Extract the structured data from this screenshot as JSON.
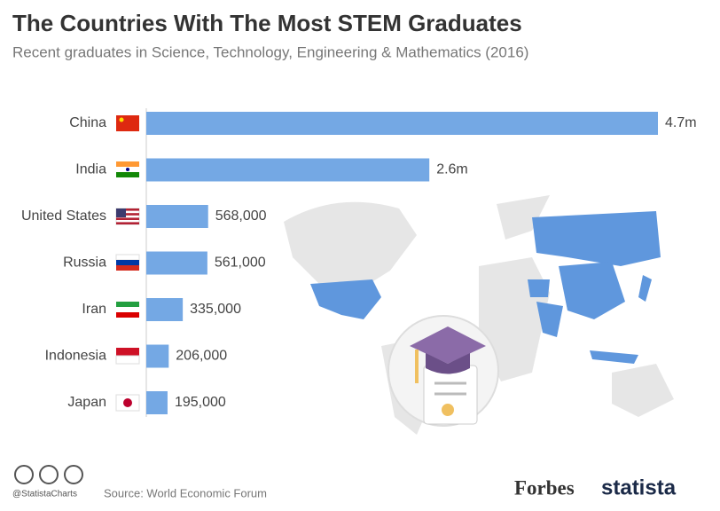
{
  "chart_data": {
    "type": "bar",
    "orientation": "horizontal",
    "title": "The Countries With The Most STEM Graduates",
    "subtitle": "Recent graduates in Science, Technology, Engineering & Mathematics (2016)",
    "categories": [
      "China",
      "India",
      "United States",
      "Russia",
      "Iran",
      "Indonesia",
      "Japan"
    ],
    "values": [
      4700000,
      2600000,
      568000,
      561000,
      335000,
      206000,
      195000
    ],
    "value_labels": [
      "4.7m",
      "2.6m",
      "568,000",
      "561,000",
      "335,000",
      "206,000",
      "195,000"
    ],
    "color": "#74a8e4",
    "credit": "@StatistaCharts",
    "source": "Source: World Economic Forum",
    "logos": [
      "Forbes",
      "statista"
    ]
  }
}
